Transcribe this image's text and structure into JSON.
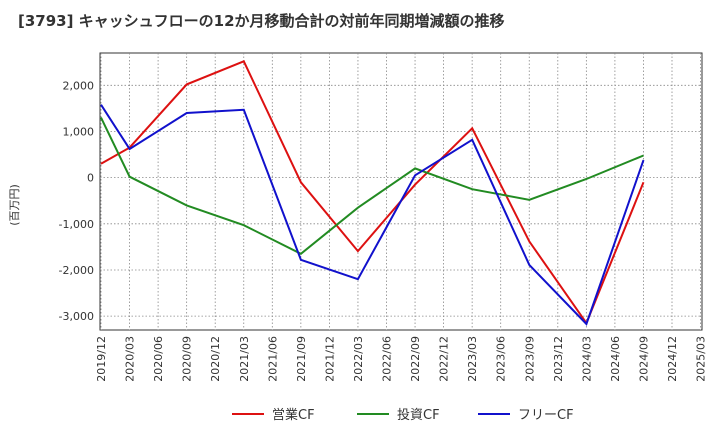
{
  "chart_data": {
    "type": "line",
    "title": "[3793]  キャッシュフローの12か月移動合計の対前年同期増減額の推移",
    "ylabel": "(百万円)",
    "xlabel": "",
    "ylim": [
      -3300,
      2700
    ],
    "yticks": [
      2000,
      1000,
      0,
      -1000,
      -2000,
      -3000
    ],
    "ytick_labels": [
      "2,000",
      "1,000",
      "0",
      "-1,000",
      "-2,000",
      "-3,000"
    ],
    "categories": [
      "2019/12",
      "2020/03",
      "2020/06",
      "2020/09",
      "2020/12",
      "2021/03",
      "2021/06",
      "2021/09",
      "2021/12",
      "2022/03",
      "2022/06",
      "2022/09",
      "2022/12",
      "2023/03",
      "2023/06",
      "2023/09",
      "2023/12",
      "2024/03",
      "2024/06",
      "2024/09",
      "2024/12",
      "2025/03"
    ],
    "grid": true,
    "legend_position": "bottom",
    "series": [
      {
        "name": "営業CF",
        "color": "#dd1111",
        "values": [
          300,
          650,
          null,
          2020,
          null,
          2520,
          null,
          -100,
          null,
          -1590,
          null,
          -150,
          null,
          1070,
          null,
          -1380,
          null,
          -3150,
          null,
          -100,
          null,
          null
        ]
      },
      {
        "name": "投資CF",
        "color": "#228b22",
        "values": [
          1300,
          20,
          null,
          -600,
          null,
          -1030,
          null,
          -1650,
          null,
          -650,
          null,
          200,
          null,
          -250,
          null,
          -480,
          null,
          -30,
          null,
          480,
          null,
          null
        ]
      },
      {
        "name": "フリーCF",
        "color": "#1111cc",
        "values": [
          1580,
          620,
          null,
          1400,
          null,
          1470,
          null,
          -1780,
          null,
          -2200,
          null,
          50,
          null,
          820,
          null,
          -1890,
          null,
          -3170,
          null,
          380,
          null,
          null
        ]
      }
    ]
  }
}
